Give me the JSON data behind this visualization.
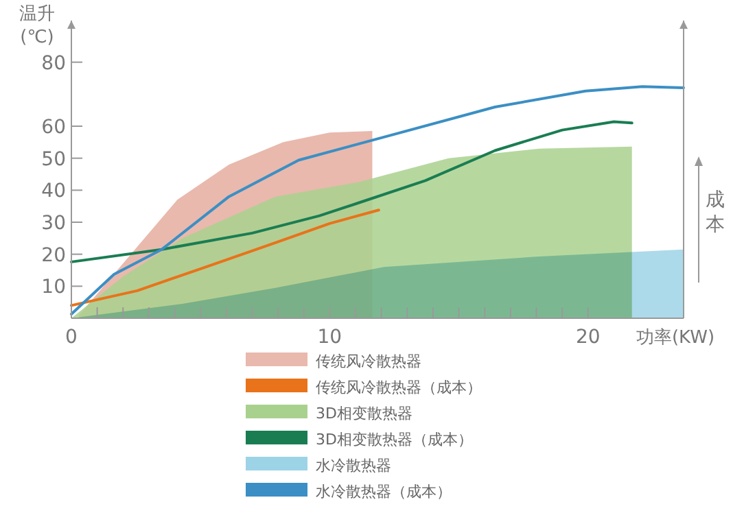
{
  "chart_data": {
    "type": "area",
    "xlabel": "功率(KW)",
    "ylabel": "温升\n(℃)",
    "y2label": "成本",
    "xlim": [
      0,
      23.7
    ],
    "ylim": [
      0,
      93
    ],
    "xticks": [
      0,
      {
        "value": 1,
        "label": null
      },
      {
        "value": 2,
        "label": null
      },
      {
        "value": 3,
        "label": null
      },
      {
        "value": 4,
        "label": null
      },
      {
        "value": 5,
        "label": null
      },
      {
        "value": 6,
        "label": null
      },
      {
        "value": 7,
        "label": null
      },
      {
        "value": 8,
        "label": null
      },
      {
        "value": 9,
        "label": null
      },
      10,
      {
        "value": 11,
        "label": null
      },
      {
        "value": 12,
        "label": null
      },
      {
        "value": 13,
        "label": null
      },
      {
        "value": 14,
        "label": null
      },
      {
        "value": 15,
        "label": null
      },
      {
        "value": 16,
        "label": null
      },
      {
        "value": 17,
        "label": null
      },
      {
        "value": 18,
        "label": null
      },
      {
        "value": 19,
        "label": null
      },
      20
    ],
    "yticks": [
      10,
      20,
      30,
      40,
      50,
      60,
      80
    ],
    "grid": false,
    "legend": "bottom",
    "series": [
      {
        "name": "传统风冷散热器",
        "color": "#e9b9ad",
        "x": [
          0.3,
          2.2,
          4.1,
          6.1,
          8.2,
          10,
          11.65
        ],
        "values": [
          1,
          19,
          37,
          48,
          55,
          58,
          58.5
        ]
      },
      {
        "name": "传统风冷散热器（成本）",
        "type": "line",
        "color": "#e8731a",
        "x": [
          0,
          2.55,
          5.2,
          7.9,
          10,
          11.9
        ],
        "values": [
          4,
          8.6,
          16,
          23.6,
          29.6,
          33.8
        ]
      },
      {
        "name": "3D相变散热器",
        "color": "#a9d18e",
        "x": [
          0,
          2,
          4.3,
          7.9,
          11.1,
          14.6,
          18.1,
          21.7
        ],
        "values": [
          0,
          13,
          25,
          38,
          42.5,
          50,
          53,
          53.6
        ]
      },
      {
        "name": "3D相变散热器（成本）",
        "type": "line",
        "color": "#1a7d52",
        "x": [
          0,
          3.5,
          7,
          9.6,
          11.1,
          13.7,
          16.4,
          19,
          21,
          21.7
        ],
        "values": [
          17.6,
          21.5,
          26.6,
          32,
          36,
          43,
          52.4,
          58.8,
          61.4,
          61
        ]
      },
      {
        "name": "水冷散热器",
        "color": "#9dd3e6",
        "x": [
          0,
          4.3,
          7.9,
          12.1,
          18.1,
          23.7
        ],
        "values": [
          0,
          4.5,
          9.5,
          16,
          19.3,
          21.5
        ]
      },
      {
        "name": "水冷散热器（成本）",
        "type": "line",
        "color": "#3b8fc4",
        "x": [
          0,
          1.65,
          3.5,
          6.1,
          8.8,
          12.1,
          16.4,
          19.9,
          22.1,
          23.7
        ],
        "values": [
          1.3,
          13.7,
          21.5,
          38,
          49.4,
          56.6,
          66,
          71,
          72.4,
          72
        ]
      }
    ]
  }
}
